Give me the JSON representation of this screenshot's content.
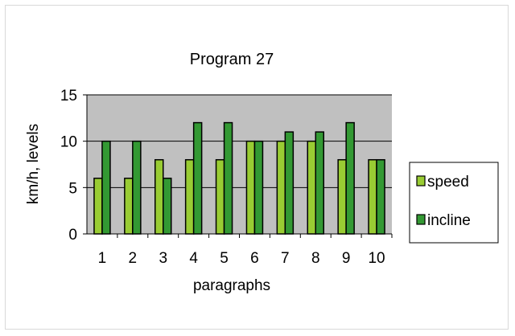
{
  "chart_data": {
    "type": "bar",
    "title": "Program 27",
    "xlabel": "paragraphs",
    "ylabel": "km/h, levels",
    "categories": [
      "1",
      "2",
      "3",
      "4",
      "5",
      "6",
      "7",
      "8",
      "9",
      "10"
    ],
    "yticks": [
      "0",
      "5",
      "10",
      "15"
    ],
    "ylim": [
      0,
      15
    ],
    "grid": true,
    "legend": "right",
    "series": [
      {
        "name": "speed",
        "values": [
          6,
          6,
          8,
          8,
          8,
          10,
          10,
          10,
          8,
          8
        ],
        "color": "#99cc33"
      },
      {
        "name": "incline",
        "values": [
          10,
          10,
          6,
          12,
          12,
          10,
          11,
          11,
          12,
          8
        ],
        "color": "#339933"
      }
    ],
    "plot_background": "#c0c0c0",
    "bar_outline": "#000000"
  }
}
